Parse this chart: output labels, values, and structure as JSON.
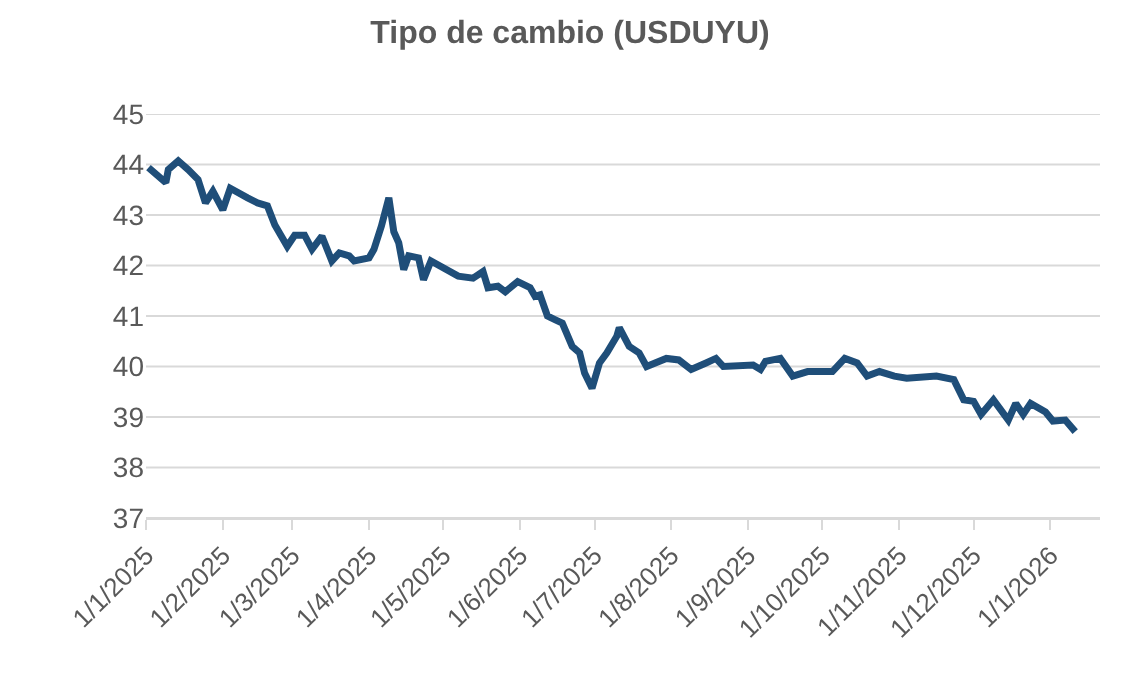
{
  "chart_data": {
    "type": "line",
    "title": "Tipo de cambio (USDUYU)",
    "x": [
      "2025-01-02",
      "2025-01-09",
      "2025-01-10",
      "2025-01-14",
      "2025-01-18",
      "2025-01-22",
      "2025-01-25",
      "2025-01-28",
      "2025-02-01",
      "2025-02-04",
      "2025-02-11",
      "2025-02-15",
      "2025-02-19",
      "2025-02-22",
      "2025-02-27",
      "2025-03-02",
      "2025-03-06",
      "2025-03-09",
      "2025-03-13",
      "2025-03-17",
      "2025-03-20",
      "2025-03-24",
      "2025-03-26",
      "2025-04-01",
      "2025-04-03",
      "2025-04-06",
      "2025-04-09",
      "2025-04-11",
      "2025-04-13",
      "2025-04-15",
      "2025-04-17",
      "2025-04-21",
      "2025-04-23",
      "2025-04-26",
      "2025-05-07",
      "2025-05-13",
      "2025-05-17",
      "2025-05-19",
      "2025-05-23",
      "2025-05-26",
      "2025-05-31",
      "2025-06-05",
      "2025-06-07",
      "2025-06-09",
      "2025-06-12",
      "2025-06-15",
      "2025-06-18",
      "2025-06-22",
      "2025-06-25",
      "2025-06-27",
      "2025-06-30",
      "2025-07-03",
      "2025-07-06",
      "2025-07-10",
      "2025-07-11",
      "2025-07-15",
      "2025-07-19",
      "2025-07-22",
      "2025-07-30",
      "2025-08-04",
      "2025-08-09",
      "2025-08-15",
      "2025-08-19",
      "2025-08-22",
      "2025-09-03",
      "2025-09-06",
      "2025-09-08",
      "2025-09-14",
      "2025-09-19",
      "2025-09-25",
      "2025-10-05",
      "2025-10-10",
      "2025-10-15",
      "2025-10-19",
      "2025-10-24",
      "2025-10-30",
      "2025-11-04",
      "2025-11-16",
      "2025-11-23",
      "2025-11-27",
      "2025-12-01",
      "2025-12-04",
      "2025-12-09",
      "2025-12-15",
      "2025-12-18",
      "2025-12-21",
      "2025-12-24",
      "2025-12-30",
      "2026-01-02",
      "2026-01-07",
      "2026-01-11"
    ],
    "series": [
      {
        "color": "#1f4e79",
        "values": [
          43.94,
          43.64,
          43.9,
          44.07,
          43.9,
          43.7,
          43.24,
          43.47,
          43.1,
          43.53,
          43.34,
          43.24,
          43.18,
          42.8,
          42.38,
          42.6,
          42.6,
          42.32,
          42.58,
          42.09,
          42.25,
          42.19,
          42.09,
          42.15,
          42.32,
          42.78,
          43.34,
          42.67,
          42.45,
          41.92,
          42.19,
          42.15,
          41.72,
          42.09,
          41.79,
          41.75,
          41.88,
          41.56,
          41.59,
          41.48,
          41.68,
          41.56,
          41.39,
          41.42,
          41.0,
          40.93,
          40.86,
          40.4,
          40.27,
          39.87,
          39.57,
          40.07,
          40.27,
          40.6,
          40.77,
          40.4,
          40.27,
          40.0,
          40.16,
          40.13,
          39.94,
          40.07,
          40.16,
          40.0,
          40.03,
          39.94,
          40.1,
          40.16,
          39.81,
          39.9,
          39.9,
          40.16,
          40.07,
          39.81,
          39.9,
          39.81,
          39.77,
          39.81,
          39.74,
          39.34,
          39.31,
          39.05,
          39.34,
          38.94,
          39.27,
          39.05,
          39.27,
          39.1,
          38.92,
          38.94,
          38.71
        ]
      }
    ],
    "xlim": [
      "2025-01-01",
      "2026-01-21"
    ],
    "xticks": [
      {
        "value": "2025-01-01",
        "label": "1/1/2025"
      },
      {
        "value": "2025-02-01",
        "label": "1/2/2025"
      },
      {
        "value": "2025-03-01",
        "label": "1/3/2025"
      },
      {
        "value": "2025-04-01",
        "label": "1/4/2025"
      },
      {
        "value": "2025-05-01",
        "label": "1/5/2025"
      },
      {
        "value": "2025-06-01",
        "label": "1/6/2025"
      },
      {
        "value": "2025-07-01",
        "label": "1/7/2025"
      },
      {
        "value": "2025-08-01",
        "label": "1/8/2025"
      },
      {
        "value": "2025-09-01",
        "label": "1/9/2025"
      },
      {
        "value": "2025-10-01",
        "label": "1/10/2025"
      },
      {
        "value": "2025-11-01",
        "label": "1/11/2025"
      },
      {
        "value": "2025-12-01",
        "label": "1/12/2025"
      },
      {
        "value": "2026-01-01",
        "label": "1/1/2026"
      }
    ],
    "ylim": [
      37,
      45
    ],
    "yticks": [
      37,
      38,
      39,
      40,
      41,
      42,
      43,
      44,
      45
    ],
    "grid": "y",
    "marker": "none",
    "line_style": "solid"
  }
}
